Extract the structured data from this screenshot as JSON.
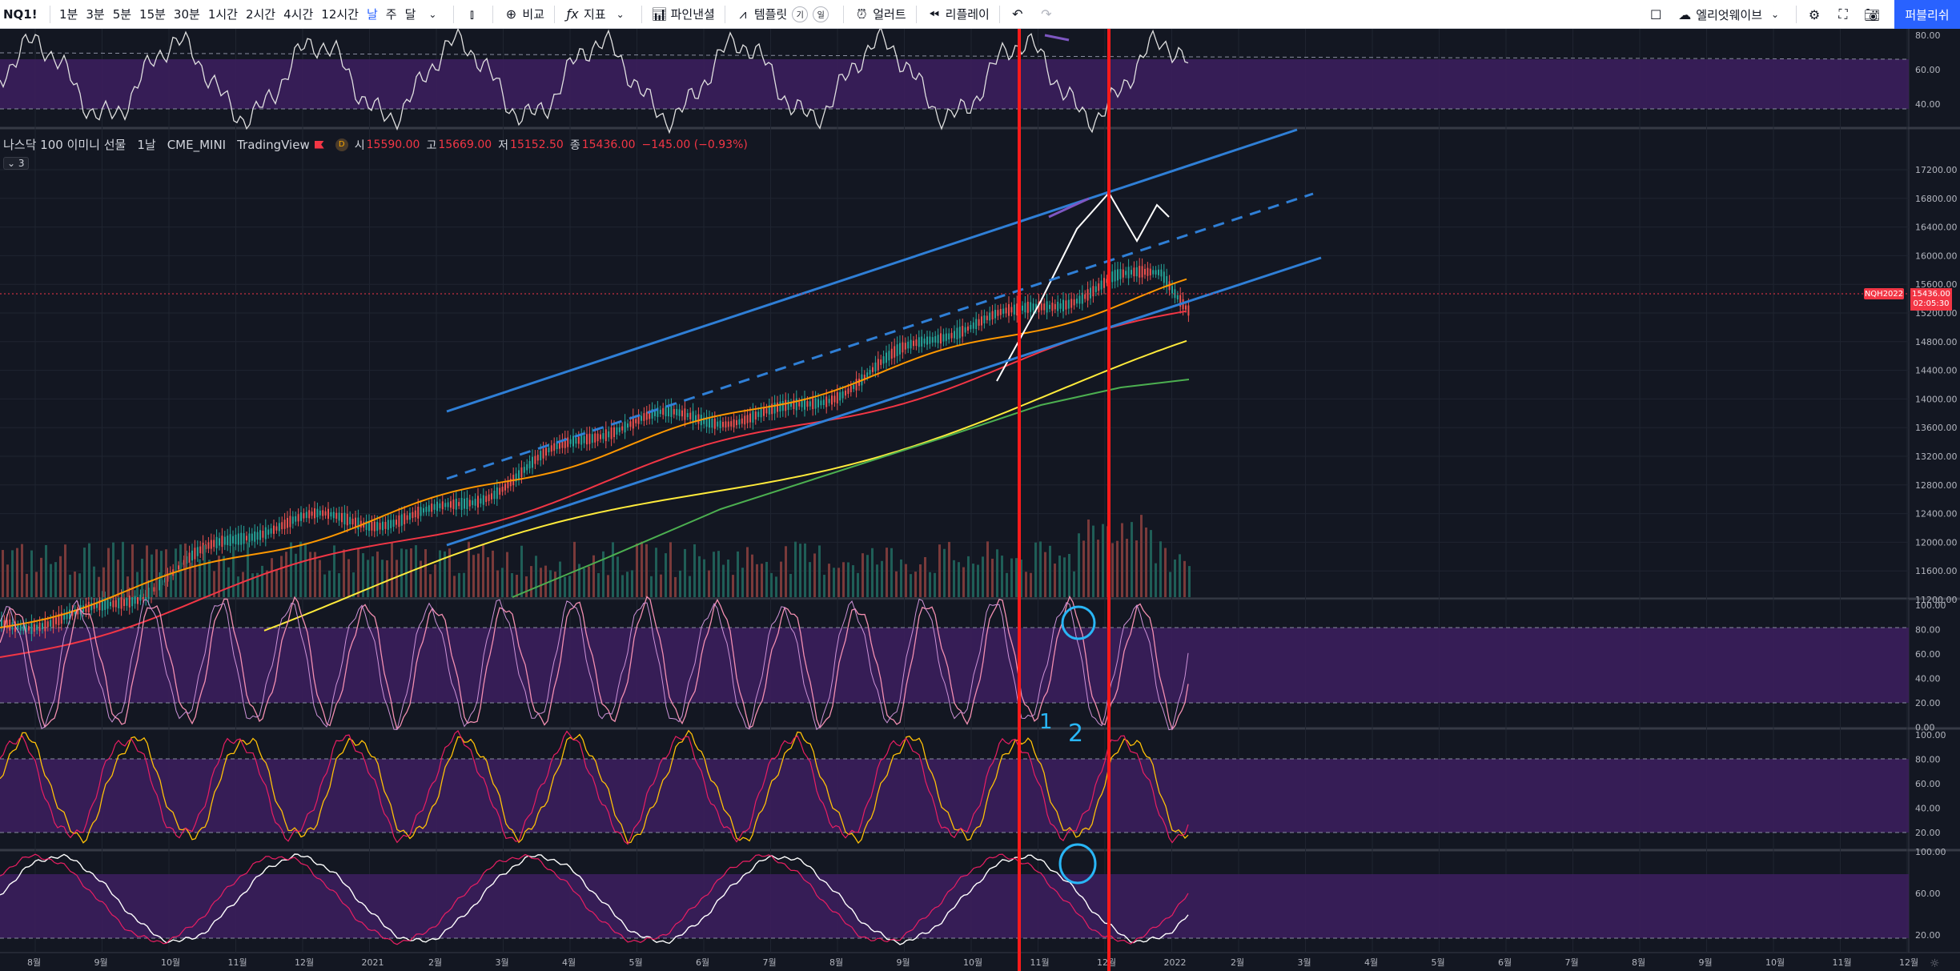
{
  "symbol": "NQ1!",
  "intervals": [
    "1분",
    "3분",
    "5분",
    "15분",
    "30분",
    "1시간",
    "2시간",
    "4시간",
    "12시간",
    "날",
    "주",
    "달"
  ],
  "active_interval": "날",
  "toolbar": {
    "compare": "비교",
    "indicators": "지표",
    "pine_editor": "파인낸셜",
    "templates": "템플릿",
    "alert": "얼러트",
    "replay": "리플레이",
    "layout_name": "엘리엇웨이브",
    "publish": "퍼블리쉬",
    "badge_1": "기",
    "badge_2": "일"
  },
  "legend": {
    "title": "나스닥 100 이미니 선물",
    "interval": "1날",
    "exchange": "CME_MINI",
    "source": "TradingView",
    "d_badge": "D",
    "o_label": "시",
    "o_value": "15590.00",
    "h_label": "고",
    "h_value": "15669.00",
    "l_label": "저",
    "l_value": "15152.50",
    "c_label": "종",
    "c_value": "15436.00",
    "change": "−145.00 (−0.93%)",
    "collapse": "⌄ 3"
  },
  "price_axis": {
    "labels": [
      "17200.00",
      "16800.00",
      "16400.00",
      "16000.00",
      "15600.00",
      "15200.00",
      "14800.00",
      "14400.00",
      "14000.00",
      "13600.00",
      "13200.00",
      "12800.00",
      "12400.00",
      "12000.00",
      "11600.00",
      "11200.00"
    ],
    "current_symbol": "NQH2022",
    "current_price": "15436.00",
    "countdown": "02:05:30"
  },
  "rsi_axis": [
    "80.00",
    "60.00",
    "40.00"
  ],
  "stoch1_axis": [
    "100.00",
    "80.00",
    "60.00",
    "40.00",
    "20.00",
    "0.00"
  ],
  "stoch2_axis": [
    "100.00",
    "80.00",
    "60.00",
    "40.00",
    "20.00"
  ],
  "osc3_axis": [
    "100.00",
    "60.00",
    "20.00"
  ],
  "time_axis": [
    "8월",
    "9월",
    "10월",
    "11월",
    "12월",
    "2021",
    "2월",
    "3월",
    "4월",
    "5월",
    "6월",
    "7월",
    "8월",
    "9월",
    "10월",
    "11월",
    "12월",
    "2022",
    "2월",
    "3월",
    "4월",
    "5월",
    "6월",
    "7월",
    "8월",
    "9월",
    "10월",
    "11월",
    "12월"
  ],
  "annotations": {
    "digit_1": "1",
    "digit_2": "2"
  },
  "colors": {
    "background": "#131722",
    "channel": "#2f7fd6",
    "highlight_box": "#ff1a1a",
    "zone": "#3b1e5c",
    "annotation": "#29b6f6"
  }
}
